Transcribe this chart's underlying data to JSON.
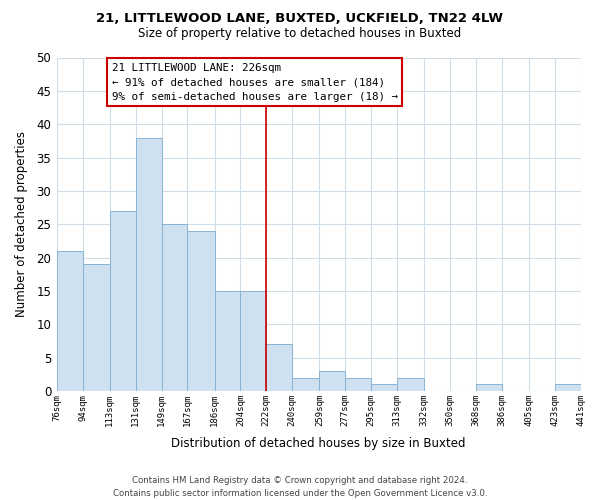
{
  "title": "21, LITTLEWOOD LANE, BUXTED, UCKFIELD, TN22 4LW",
  "subtitle": "Size of property relative to detached houses in Buxted",
  "xlabel": "Distribution of detached houses by size in Buxted",
  "ylabel": "Number of detached properties",
  "bar_color": "#cfe0f0",
  "bar_edgecolor": "#89b4d4",
  "vline_x": 222,
  "vline_color": "#cc0000",
  "bin_edges": [
    76,
    94,
    113,
    131,
    149,
    167,
    186,
    204,
    222,
    240,
    259,
    277,
    295,
    313,
    332,
    350,
    368,
    386,
    405,
    423,
    441
  ],
  "bar_heights": [
    21,
    19,
    27,
    38,
    25,
    24,
    15,
    15,
    7,
    2,
    3,
    2,
    1,
    2,
    0,
    0,
    1,
    0,
    0,
    1
  ],
  "tick_labels": [
    "76sqm",
    "94sqm",
    "113sqm",
    "131sqm",
    "149sqm",
    "167sqm",
    "186sqm",
    "204sqm",
    "222sqm",
    "240sqm",
    "259sqm",
    "277sqm",
    "295sqm",
    "313sqm",
    "332sqm",
    "350sqm",
    "368sqm",
    "386sqm",
    "405sqm",
    "423sqm",
    "441sqm"
  ],
  "ylim": [
    0,
    50
  ],
  "yticks": [
    0,
    5,
    10,
    15,
    20,
    25,
    30,
    35,
    40,
    45,
    50
  ],
  "annotation_title": "21 LITTLEWOOD LANE: 226sqm",
  "annotation_line1": "← 91% of detached houses are smaller (184)",
  "annotation_line2": "9% of semi-detached houses are larger (18) →",
  "annotation_box_color": "#ffffff",
  "annotation_box_edgecolor": "#cc0000",
  "footer_line1": "Contains HM Land Registry data © Crown copyright and database right 2024.",
  "footer_line2": "Contains public sector information licensed under the Open Government Licence v3.0.",
  "background_color": "#ffffff",
  "grid_color": "#d0dce8"
}
